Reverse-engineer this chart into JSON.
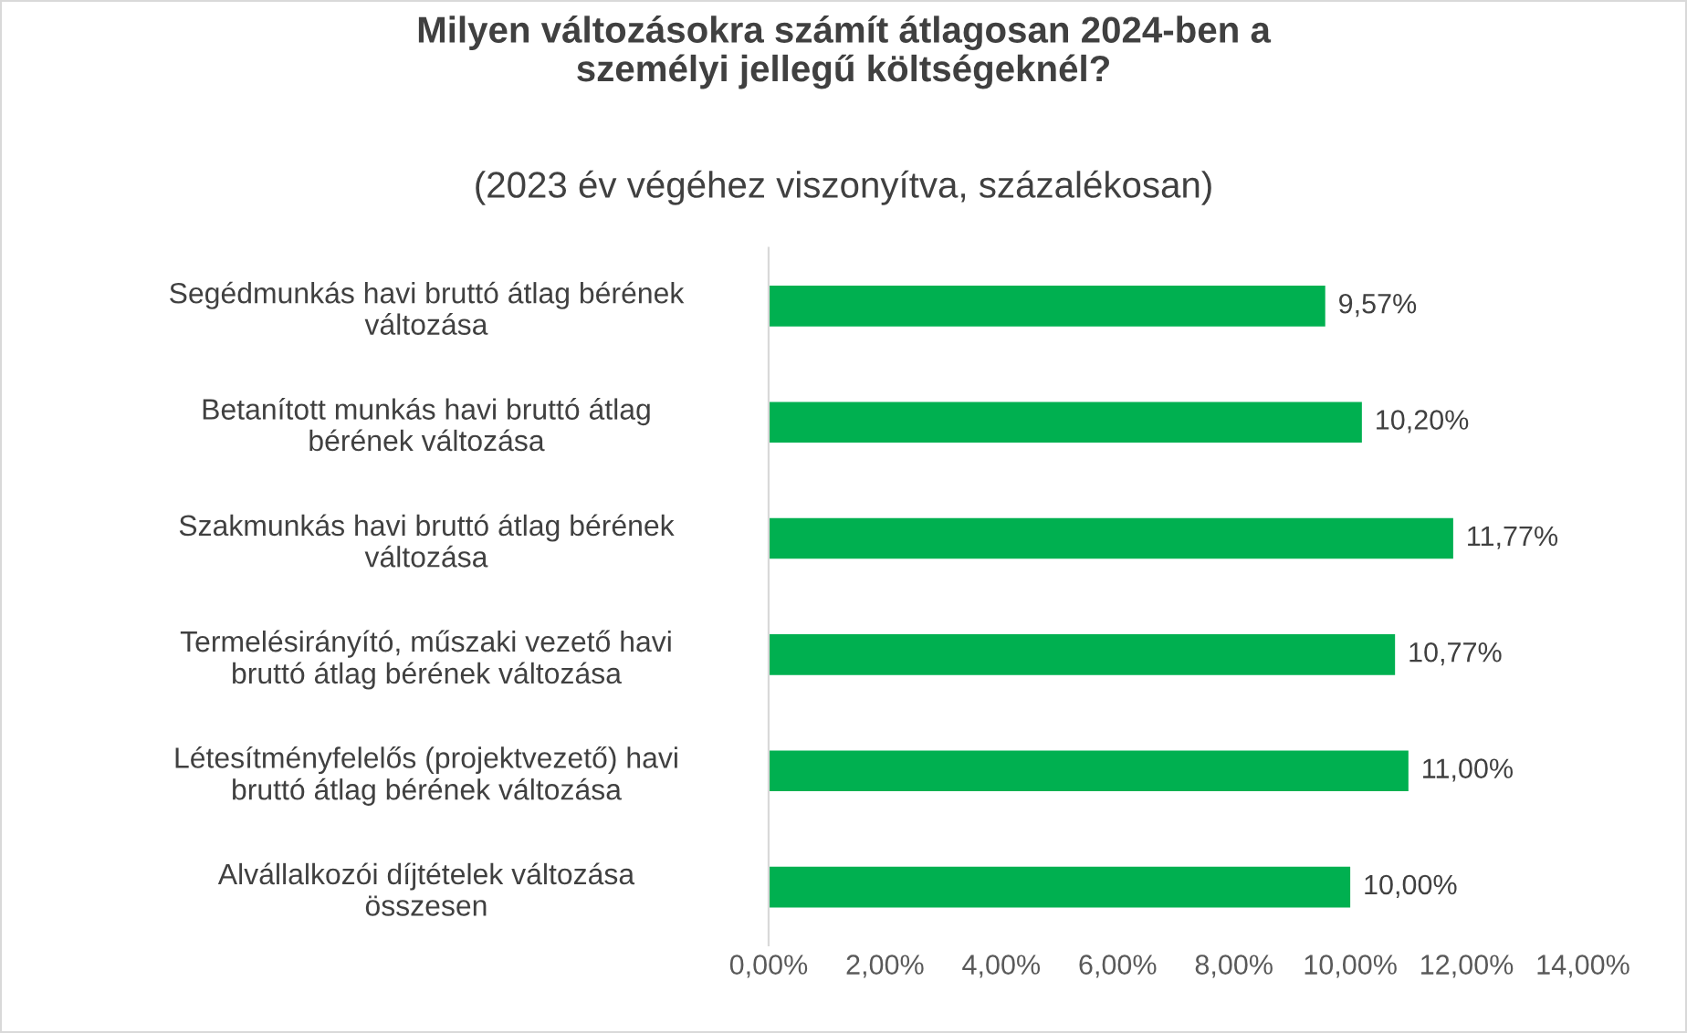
{
  "chart_data": {
    "type": "bar",
    "orientation": "horizontal",
    "title": "Milyen változásokra számít átlagosan 2024-ben a személyi jellegű költségeknél?",
    "subtitle": "(2023 év végéhez viszonyítva, százalékosan)",
    "categories": [
      "Segédmunkás havi bruttó átlag bérének változása",
      "Betanított munkás havi bruttó átlag bérének változása",
      "Szakmunkás havi bruttó átlag bérének változása",
      "Termelésirányító, műszaki vezető havi bruttó átlag bérének változása",
      "Létesítményfelelős (projektvezető) havi bruttó átlag bérének változása",
      "Alvállalkozói díjtételek változása összesen"
    ],
    "values": [
      9.57,
      10.2,
      11.77,
      10.77,
      11.0,
      10.0
    ],
    "value_labels": [
      "9,57%",
      "10,20%",
      "11,77%",
      "10,77%",
      "11,00%",
      "10,00%"
    ],
    "color": "#00b050",
    "xlim": [
      0,
      14
    ],
    "xticks": [
      {
        "value": 0,
        "label": "0,00%"
      },
      {
        "value": 2,
        "label": "2,00%"
      },
      {
        "value": 4,
        "label": "4,00%"
      },
      {
        "value": 6,
        "label": "6,00%"
      },
      {
        "value": 8,
        "label": "8,00%"
      },
      {
        "value": 10,
        "label": "10,00%"
      },
      {
        "value": 12,
        "label": "12,00%"
      },
      {
        "value": 14,
        "label": "14,00%"
      }
    ],
    "grid": false,
    "legend": false
  }
}
